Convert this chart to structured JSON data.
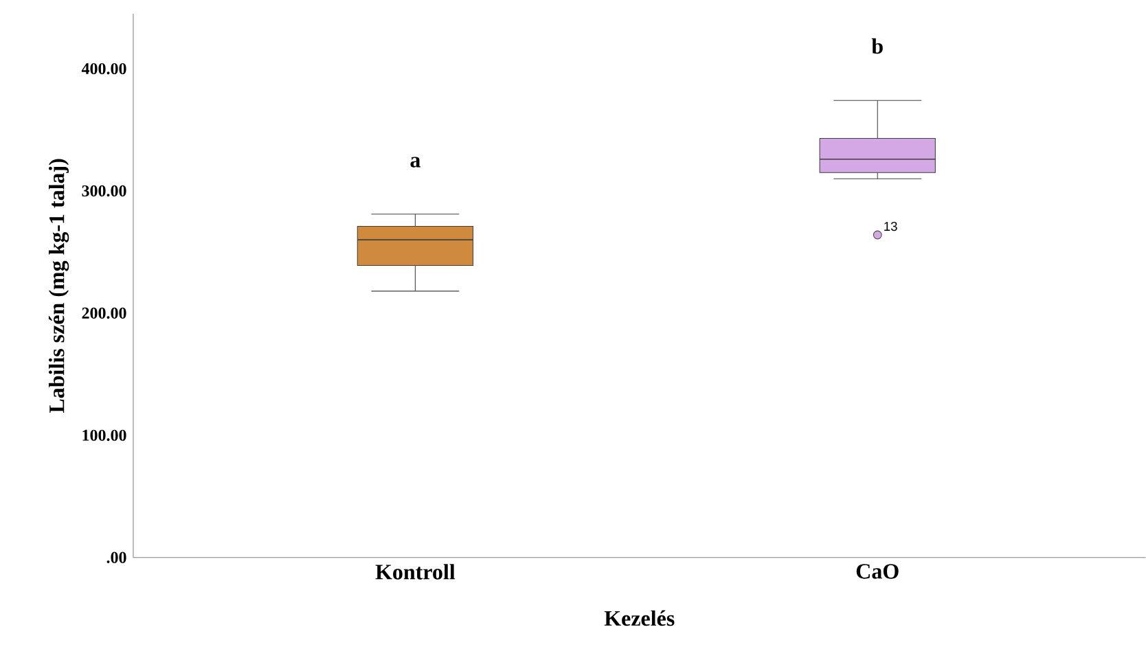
{
  "chart_data": {
    "type": "box",
    "xlabel": "Kezelés",
    "ylabel": "Labilis szén (mg kg-1 talaj)",
    "categories": [
      "Kontroll",
      "CaO"
    ],
    "colors": [
      "#d08a3e",
      "#d4a8e4"
    ],
    "boxes": [
      {
        "low": 218,
        "q1": 239,
        "median": 260,
        "q3": 271,
        "high": 281
      },
      {
        "low": 310,
        "q1": 315,
        "median": 326,
        "q3": 343,
        "high": 374,
        "outliers": [
          264
        ]
      }
    ],
    "ylim": [
      0,
      445
    ],
    "yticks": [
      {
        "value": 0,
        "label": ".00"
      },
      {
        "value": 100,
        "label": "100.00"
      },
      {
        "value": 200,
        "label": "200.00"
      },
      {
        "value": 300,
        "label": "300.00"
      },
      {
        "value": 400,
        "label": "400.00"
      }
    ],
    "grid": false,
    "annotations": [
      "a",
      "b",
      "13"
    ]
  }
}
